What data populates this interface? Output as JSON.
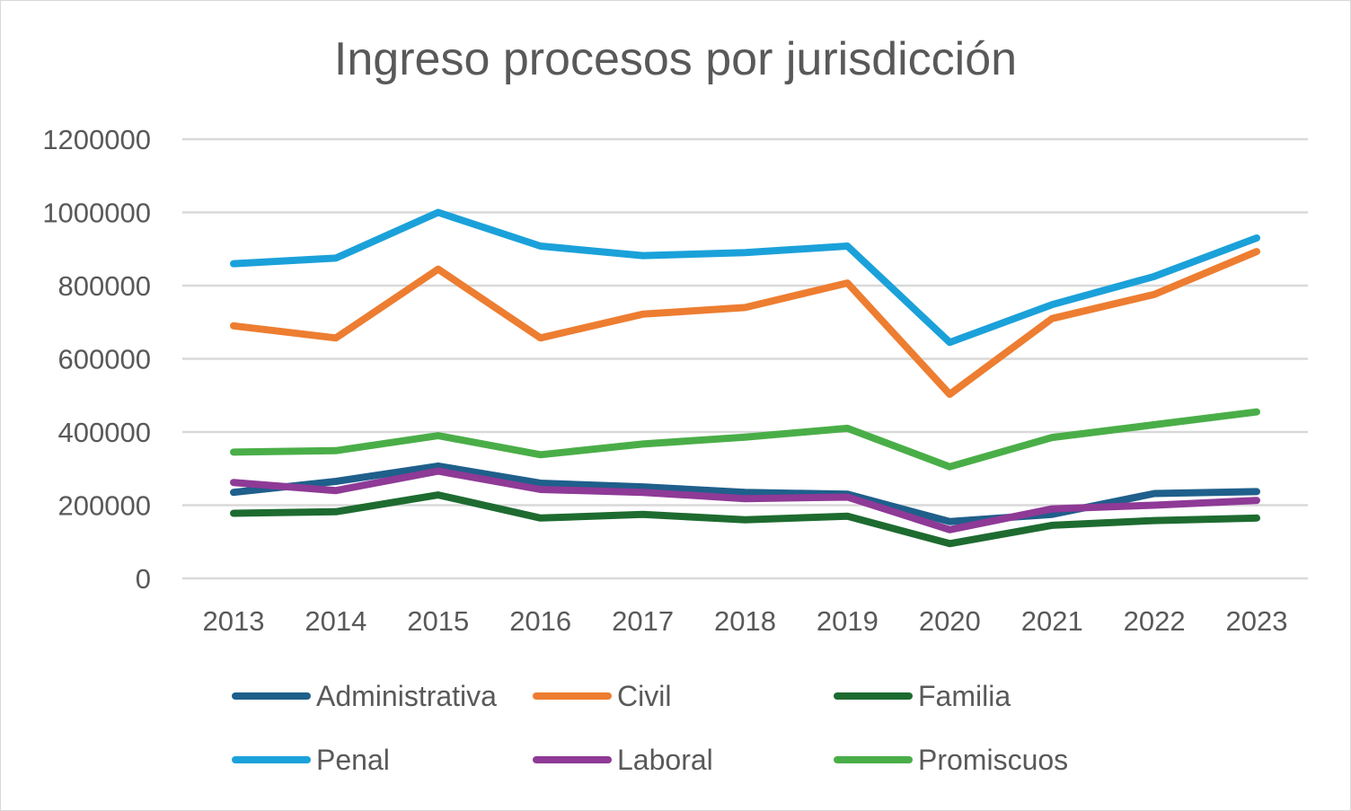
{
  "chart_data": {
    "type": "line",
    "title": "Ingreso procesos por jurisdicción",
    "xlabel": "",
    "ylabel": "",
    "ylim": [
      0,
      1200000
    ],
    "yticks": [
      0,
      200000,
      400000,
      600000,
      800000,
      1000000,
      1200000
    ],
    "yticks_labels": [
      "0",
      "200000",
      "400000",
      "600000",
      "800000",
      "1000000",
      "1200000"
    ],
    "categories": [
      "2013",
      "2014",
      "2015",
      "2016",
      "2017",
      "2018",
      "2019",
      "2020",
      "2021",
      "2022",
      "2023"
    ],
    "grid": true,
    "legend_position": "bottom",
    "series": [
      {
        "name": "Administrativa",
        "color": "#1f5f8b",
        "values": [
          235000,
          265000,
          307000,
          260000,
          250000,
          235000,
          230000,
          155000,
          175000,
          232000,
          237000
        ]
      },
      {
        "name": "Civil",
        "color": "#ed7d31",
        "values": [
          690000,
          657000,
          845000,
          657000,
          722000,
          740000,
          807000,
          503000,
          710000,
          776000,
          893000
        ]
      },
      {
        "name": "Familia",
        "color": "#1e6b30",
        "values": [
          178000,
          182000,
          228000,
          165000,
          175000,
          160000,
          170000,
          95000,
          145000,
          158000,
          165000
        ]
      },
      {
        "name": "Penal",
        "color": "#1ba1d9",
        "values": [
          860000,
          875000,
          1000000,
          908000,
          882000,
          890000,
          908000,
          645000,
          748000,
          825000,
          930000
        ]
      },
      {
        "name": "Laboral",
        "color": "#8e3a96",
        "values": [
          262000,
          240000,
          293000,
          243000,
          235000,
          218000,
          222000,
          133000,
          190000,
          200000,
          213000
        ]
      },
      {
        "name": "Promiscuos",
        "color": "#4aae48",
        "values": [
          345000,
          349000,
          390000,
          338000,
          367000,
          386000,
          410000,
          305000,
          385000,
          420000,
          455000
        ]
      }
    ]
  }
}
